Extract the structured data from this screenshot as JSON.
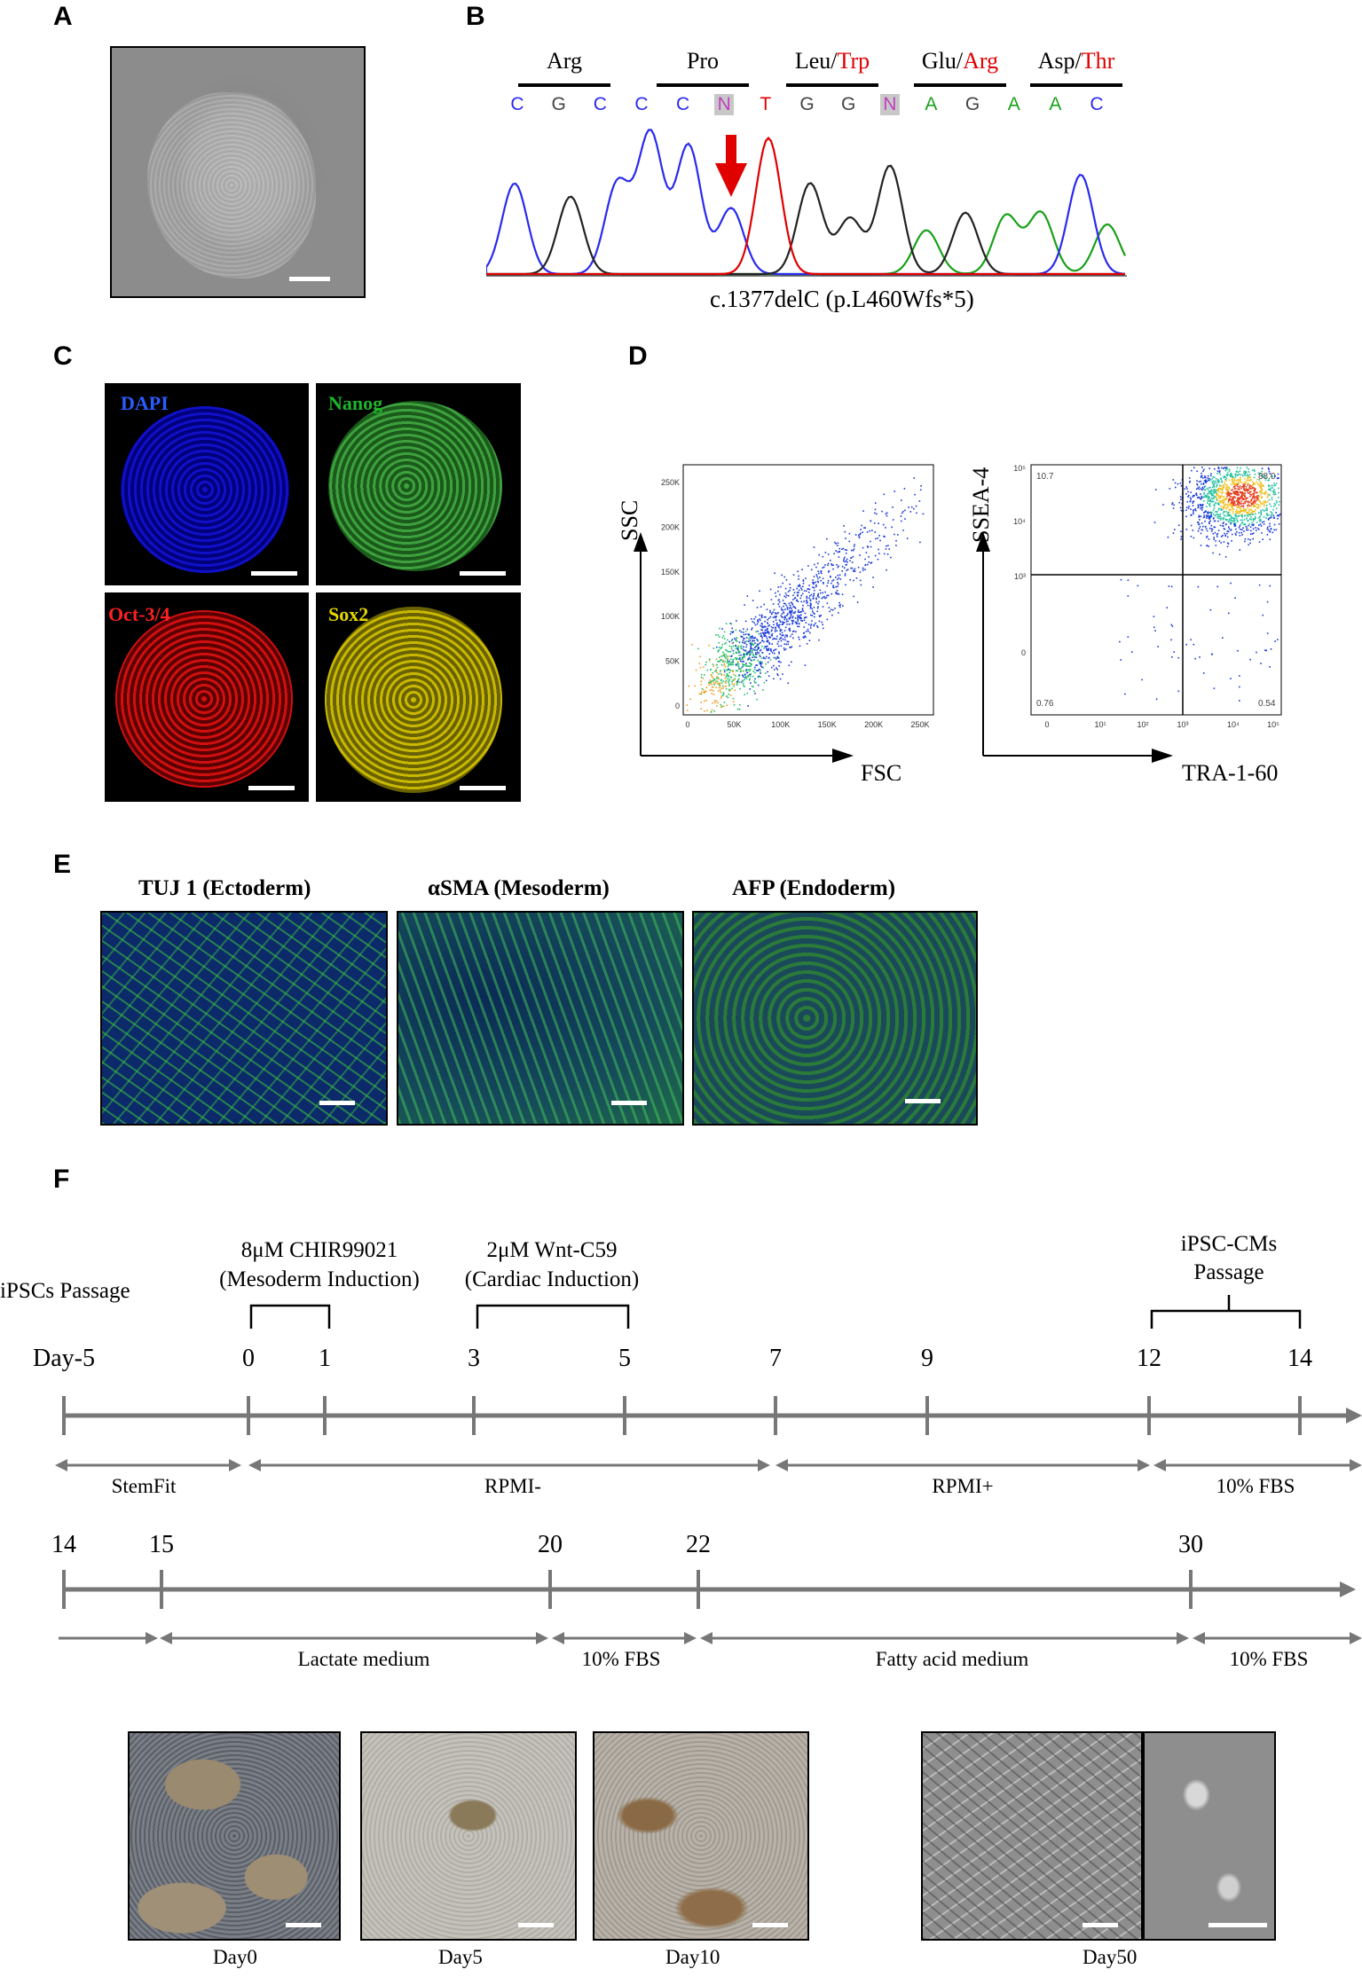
{
  "panels": {
    "A": "A",
    "B": "B",
    "C": "C",
    "D": "D",
    "E": "E",
    "F": "F"
  },
  "panel_b": {
    "codons": [
      {
        "segs": [
          {
            "t": "Arg",
            "c": "#000"
          }
        ]
      },
      {
        "segs": [
          {
            "t": "Pro",
            "c": "#000"
          }
        ]
      },
      {
        "segs": [
          {
            "t": "Leu/",
            "c": "#000"
          },
          {
            "t": "Trp",
            "c": "#e00000"
          }
        ]
      },
      {
        "segs": [
          {
            "t": "Glu/",
            "c": "#000"
          },
          {
            "t": "Arg",
            "c": "#e00000"
          }
        ]
      },
      {
        "segs": [
          {
            "t": "Asp/",
            "c": "#000"
          },
          {
            "t": "Thr",
            "c": "#e00000"
          }
        ]
      }
    ],
    "bases": [
      "C",
      "G",
      "C",
      "C",
      "C",
      "N",
      "T",
      "G",
      "G",
      "N",
      "A",
      "G",
      "A",
      "A",
      "C"
    ],
    "base_colors": {
      "A": "#1aa01a",
      "C": "#2a2aee",
      "G": "#444444",
      "T": "#e00000",
      "N": "#c040c0"
    },
    "caption": "c.1377delC (p.L460Wfs*5)"
  },
  "panel_c": {
    "dapi": "DAPI",
    "nanog": "Nanog",
    "oct": "Oct-3/4",
    "sox2": "Sox2"
  },
  "panel_d": {
    "ssc": "SSC",
    "fsc": "FSC",
    "ssea4": "SSEA-4",
    "tra": "TRA-1-60",
    "y_ticks_left": [
      "250K",
      "200K",
      "150K",
      "100K",
      "50K",
      "0"
    ],
    "x_ticks_left": [
      "0",
      "50K",
      "100K",
      "150K",
      "200K",
      "250K"
    ],
    "y_ticks_right": [
      "10⁵",
      "10⁴",
      "10³",
      "0"
    ],
    "x_ticks_right": [
      "0",
      "10¹",
      "10²",
      "10³",
      "10⁴",
      "10⁵"
    ],
    "q_ul": "10.7",
    "q_ur": "88.0",
    "q_ll": "0.76",
    "q_lr": "0.54"
  },
  "panel_e": {
    "tuj": "TUJ 1 (Ectoderm)",
    "sma": "αSMA (Mesoderm)",
    "afp": "AFP (Endoderm)"
  },
  "panel_f": {
    "ipsc_passage": "iPSCs Passage",
    "chir_line1": "8μM CHIR99021",
    "chir_line2": "(Mesoderm Induction)",
    "wnt_line1": "2μM Wnt-C59",
    "wnt_line2": "(Cardiac Induction)",
    "cm_line1": "iPSC-CMs",
    "cm_line2": "Passage",
    "days_top": [
      "Day-5",
      "0",
      "1",
      "3",
      "5",
      "7",
      "9",
      "12",
      "14"
    ],
    "media_top": [
      "StemFit",
      "RPMI-",
      "RPMI+",
      "10% FBS"
    ],
    "days_bottom": [
      "14",
      "15",
      "20",
      "22",
      "30"
    ],
    "media_bottom": [
      "Lactate medium",
      "10% FBS",
      "Fatty acid medium",
      "10% FBS"
    ],
    "photo_labels": [
      "Day0",
      "Day5",
      "Day10",
      "Day50"
    ]
  }
}
